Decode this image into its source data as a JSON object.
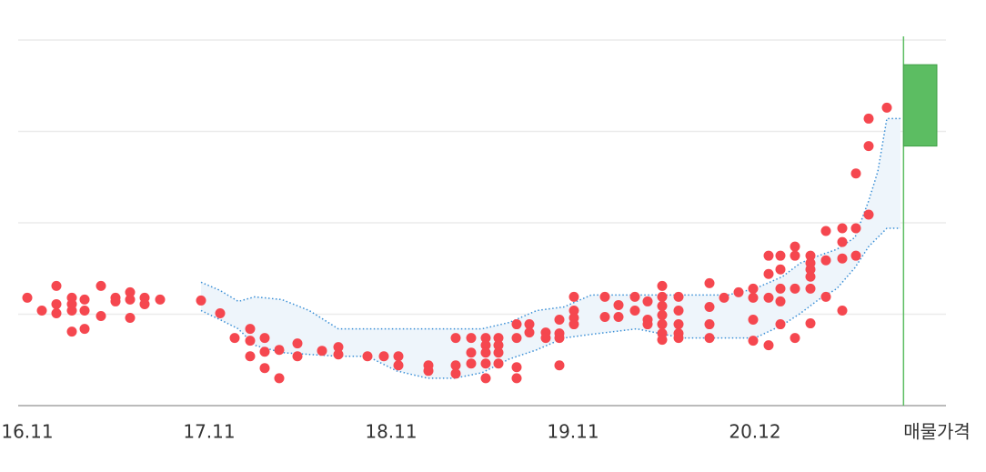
{
  "chart_data": {
    "type": "scatter",
    "xlim": [
      -0.6,
      60.6
    ],
    "ylim": [
      0,
      400
    ],
    "xticks": [
      {
        "value": 0,
        "label": "16.11"
      },
      {
        "value": 12,
        "label": "17.11"
      },
      {
        "value": 24,
        "label": "18.11"
      },
      {
        "value": 36,
        "label": "19.11"
      },
      {
        "value": 48,
        "label": "20.12"
      },
      {
        "value": 60,
        "label": "매물가격"
      }
    ],
    "grid_lines": [
      100,
      200,
      300,
      400
    ],
    "series": [
      {
        "color": "#f5474f",
        "x": [
          0,
          0.96,
          1.92,
          1.92,
          1.92,
          2.94,
          2.94,
          2.94,
          2.94,
          3.78,
          3.78,
          3.78,
          4.86,
          4.86,
          5.82,
          5.82,
          6.78,
          6.78,
          6.78,
          7.74,
          7.74,
          8.76,
          11.46,
          12.72,
          13.68,
          14.7,
          14.7,
          14.7,
          15.66,
          15.66,
          15.66,
          16.62,
          16.62,
          17.82,
          17.82,
          19.44,
          20.52,
          20.52,
          22.44,
          23.52,
          24.48,
          24.48,
          26.46,
          26.46,
          28.26,
          28.26,
          28.26,
          29.28,
          29.28,
          29.28,
          30.24,
          30.24,
          30.24,
          30.24,
          30.24,
          31.08,
          31.08,
          31.08,
          31.08,
          32.28,
          32.28,
          32.28,
          32.28,
          33.12,
          33.12,
          34.2,
          34.2,
          35.1,
          35.1,
          35.1,
          35.1,
          36.06,
          36.06,
          36.06,
          36.06,
          38.1,
          38.1,
          39,
          39,
          40.08,
          40.08,
          40.92,
          40.92,
          40.92,
          41.88,
          41.88,
          41.88,
          41.88,
          41.88,
          41.88,
          41.88,
          42.96,
          42.96,
          42.96,
          42.96,
          42.96,
          45,
          45,
          45,
          45,
          45.96,
          46.92,
          47.88,
          47.88,
          47.88,
          47.88,
          48.9,
          48.9,
          48.9,
          48.9,
          49.68,
          49.68,
          49.68,
          49.68,
          49.68,
          50.64,
          50.64,
          50.64,
          50.64,
          51.66,
          51.66,
          51.66,
          51.66,
          51.66,
          51.66,
          52.68,
          52.68,
          52.68,
          53.76,
          53.76,
          53.76,
          53.76,
          54.66,
          54.66,
          54.66,
          55.5,
          55.5,
          55.5,
          56.7
        ],
        "values": [
          118,
          104,
          131,
          111,
          101,
          118,
          111,
          104,
          81,
          116,
          104,
          84,
          131,
          98,
          118,
          114,
          124,
          116,
          96,
          118,
          111,
          116,
          115,
          101,
          74,
          84,
          71,
          54,
          74,
          59,
          41,
          61,
          30,
          68,
          54,
          60,
          64,
          56,
          54,
          54,
          54,
          44,
          44,
          38,
          74,
          44,
          35,
          74,
          58,
          46,
          74,
          66,
          58,
          46,
          30,
          74,
          66,
          58,
          46,
          89,
          74,
          42,
          30,
          89,
          80,
          80,
          74,
          94,
          79,
          74,
          44,
          119,
          104,
          96,
          89,
          119,
          97,
          110,
          97,
          119,
          104,
          114,
          94,
          89,
          131,
          119,
          109,
          99,
          89,
          79,
          72,
          119,
          104,
          89,
          79,
          74,
          134,
          108,
          89,
          74,
          118,
          124,
          128,
          118,
          94,
          71,
          164,
          144,
          118,
          66,
          164,
          149,
          128,
          114,
          89,
          174,
          164,
          128,
          74,
          164,
          156,
          149,
          141,
          128,
          90,
          159,
          119,
          191,
          194,
          179,
          161,
          104,
          254,
          194,
          164,
          314,
          284,
          209,
          326
        ]
      }
    ],
    "band": {
      "color": "#3a8fd6",
      "fill": "#eef5fb",
      "x": [
        11.46,
        12.72,
        13.92,
        15,
        16.8,
        18.6,
        20.52,
        22.44,
        24.36,
        26.4,
        28.2,
        30,
        31.8,
        33.6,
        35.4,
        37.2,
        40.2,
        43.2,
        46.2,
        48,
        49.8,
        51,
        52.2,
        53.4,
        54.6,
        55.5,
        56.1,
        56.7,
        57.6
      ],
      "upper": [
        135,
        126,
        114,
        119,
        116,
        104,
        84,
        84,
        84,
        84,
        84,
        84,
        91,
        104,
        108,
        121,
        121,
        121,
        121,
        128,
        141,
        156,
        164,
        171,
        184,
        224,
        256,
        314,
        314
      ],
      "lower": [
        104,
        94,
        84,
        66,
        58,
        56,
        54,
        54,
        38,
        30,
        30,
        36,
        51,
        61,
        74,
        78,
        84,
        74,
        74,
        74,
        88,
        101,
        116,
        128,
        151,
        174,
        184,
        194,
        194
      ]
    },
    "listing": {
      "x": 57.8,
      "low": 284,
      "high": 373,
      "color": "#5cbd62"
    }
  }
}
